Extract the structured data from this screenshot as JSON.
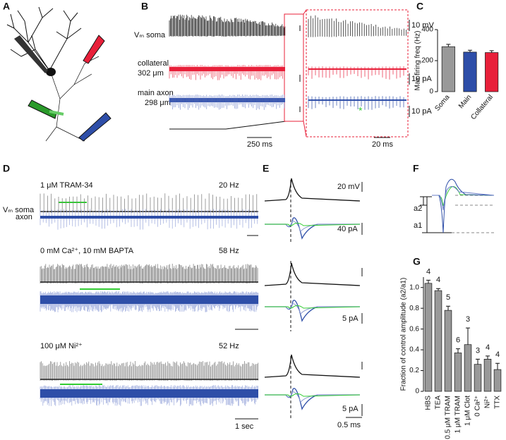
{
  "panel_labels": [
    "A",
    "B",
    "C",
    "D",
    "E",
    "F",
    "G"
  ],
  "panel_b": {
    "soma_label": "Vₘ soma",
    "collateral_label": "collateral",
    "collateral_distance": "302 μm",
    "axon_label": "main axon",
    "axon_distance": "298 μm",
    "scale_soma": "10 mV",
    "scale_collateral": "10 pA",
    "scale_axon": "10 pA",
    "scale_time_left": "250 ms",
    "scale_time_right": "20 ms",
    "asterisk": "*"
  },
  "panel_d": {
    "rows": [
      {
        "condition": "1 μM TRAM-34",
        "rate": "20 Hz"
      },
      {
        "condition": "0 mM Ca²⁺, 10 mM BAPTA",
        "rate": "58 Hz"
      },
      {
        "condition": "100 μM Ni²⁺",
        "rate": "52 Hz"
      }
    ],
    "soma_label": "Vₘ soma",
    "axon_label": "axon",
    "time_scale": "1 sec"
  },
  "panel_e": {
    "voltage_scale": "20 mV",
    "current_scale_1": "40 pA",
    "current_scale_2": "5 pA",
    "current_scale_3": "5 pA",
    "time_scale": "0.5 ms"
  },
  "panel_f": {
    "a2": "a2",
    "a1": "a1"
  },
  "chart_data": [
    {
      "type": "bar",
      "ylabel": "Max firing freq (Hz)",
      "categories": [
        "Soma",
        "Main",
        "Collateral"
      ],
      "values": [
        290,
        255,
        252
      ],
      "errors": [
        15,
        12,
        12
      ],
      "colors": [
        "#999999",
        "#2e4ea8",
        "#e8203a"
      ],
      "ylim": [
        0,
        400
      ],
      "yticks": [
        0,
        200,
        400
      ]
    },
    {
      "type": "bar",
      "ylabel": "Fraction of control amplitude (a2/a1)",
      "categories": [
        "HBS",
        "TEA",
        "0.5 μM TRAM",
        "1 μM TRAM",
        "1 μM Clot",
        "0 Ca²⁺",
        "Ni²⁺",
        "TTX"
      ],
      "values": [
        1.04,
        0.97,
        0.78,
        0.37,
        0.45,
        0.26,
        0.31,
        0.21
      ],
      "errors": [
        0.03,
        0.02,
        0.04,
        0.04,
        0.16,
        0.05,
        0.03,
        0.06
      ],
      "annotations": [
        "4",
        "4",
        "5",
        "6",
        "3",
        "3",
        "4",
        "4"
      ],
      "color": "#999999",
      "ylim": [
        0,
        1.1
      ],
      "yticks": [
        0,
        0.2,
        0.4,
        0.6,
        0.8,
        {
          "value": 1,
          "label": "1.0"
        }
      ]
    }
  ]
}
